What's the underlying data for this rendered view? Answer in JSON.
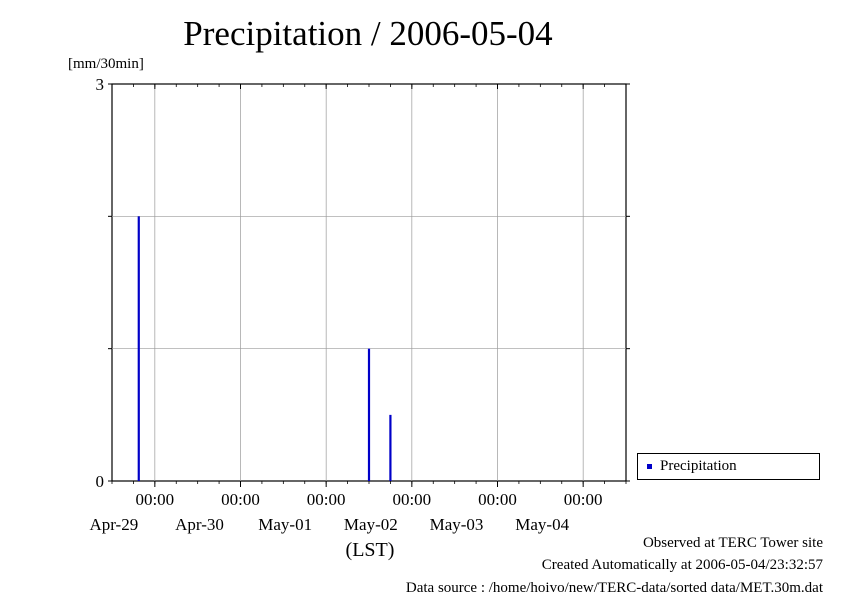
{
  "title": "Precipitation / 2006-05-04",
  "y_unit": "[mm/30min]",
  "x_unit": "(LST)",
  "legend_label": "Precipitation",
  "footer": {
    "observed": "Observed at TERC Tower site",
    "created": "Created Automatically at 2006-05-04/23:32:57",
    "source": "Data source : /home/hoivo/new/TERC-data/sorted  data/MET.30m.dat"
  },
  "chart_data": {
    "type": "bar",
    "title": "Precipitation / 2006-05-04",
    "ylabel": "[mm/30min]",
    "xlabel": "(LST)",
    "ylim": [
      0,
      3
    ],
    "yticks": [
      0,
      3
    ],
    "xlim": [
      "2006-04-28 12:00",
      "2006-05-04 12:00"
    ],
    "xticks": [
      {
        "time": "2006-04-29 00:00",
        "label": "00:00",
        "date": "Apr-29"
      },
      {
        "time": "2006-04-30 00:00",
        "label": "00:00",
        "date": "Apr-30"
      },
      {
        "time": "2006-05-01 00:00",
        "label": "00:00",
        "date": "May-01"
      },
      {
        "time": "2006-05-02 00:00",
        "label": "00:00",
        "date": "May-02"
      },
      {
        "time": "2006-05-03 00:00",
        "label": "00:00",
        "date": "May-03"
      },
      {
        "time": "2006-05-04 00:00",
        "label": "00:00",
        "date": "May-04"
      }
    ],
    "grid": true,
    "legend_position": "right",
    "color": "#0000c8",
    "series": [
      {
        "name": "Precipitation",
        "points": [
          {
            "time": "2006-04-28 19:30",
            "value": 2.0
          },
          {
            "time": "2006-05-01 12:00",
            "value": 1.0
          },
          {
            "time": "2006-05-01 18:00",
            "value": 0.5
          }
        ]
      }
    ]
  }
}
